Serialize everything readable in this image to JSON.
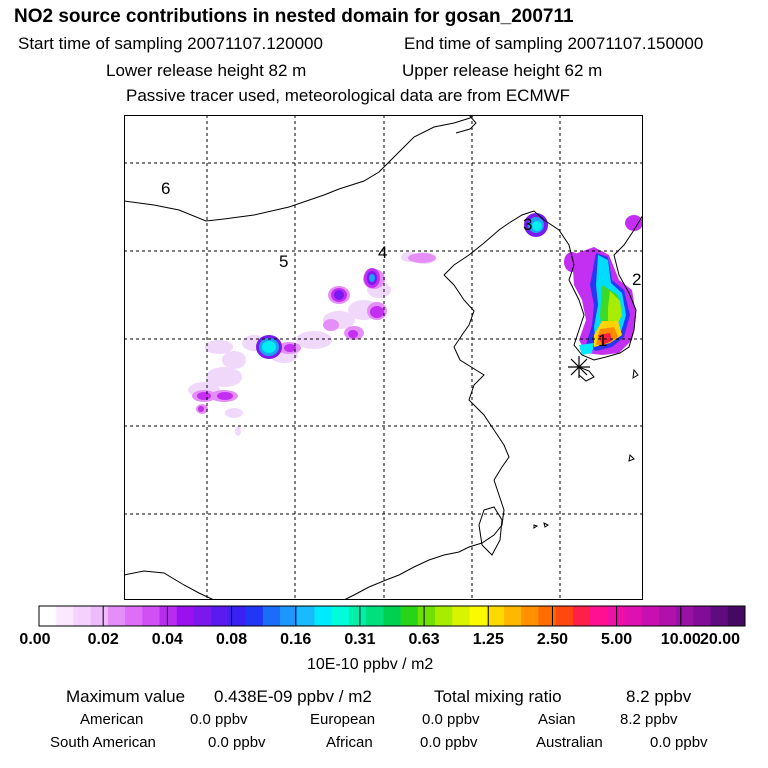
{
  "header": {
    "title": "NO2 source contributions in nested domain for gosan_200711",
    "start_time": "Start time of sampling 20071107.120000",
    "end_time": "End time of sampling 20071107.150000",
    "lower_release": "Lower release height   82 m",
    "upper_release": "Upper release height   62 m",
    "note": "Passive tracer used, meteorological data are from ECMWF"
  },
  "map": {
    "region_labels": [
      "6",
      "5",
      "4",
      "3",
      "2",
      "1"
    ],
    "receptor_marker": "asterisk"
  },
  "colorbar": {
    "tick_labels": [
      "0.00",
      "0.02",
      "0.04",
      "0.08",
      "0.16",
      "0.31",
      "0.63",
      "1.25",
      "2.50",
      "5.00",
      "10.00",
      "20.00"
    ],
    "units": "10E-10 ppbv / m2",
    "colors": [
      "#ffffff",
      "#fbe8ff",
      "#f5d2fd",
      "#eebbfb",
      "#e68ef8",
      "#de6ef6",
      "#d050f4",
      "#b82cf0",
      "#9a10ee",
      "#7a18ee",
      "#5a1af0",
      "#3a20f2",
      "#2038f6",
      "#1c6cfa",
      "#1c98fc",
      "#18bcfe",
      "#00eaff",
      "#00fcd8",
      "#00f0a8",
      "#00e07c",
      "#00d050",
      "#28d418",
      "#70e000",
      "#a8ec00",
      "#d8f400",
      "#fcfa00",
      "#ffda00",
      "#ffb800",
      "#ff9000",
      "#ff6c00",
      "#ff4810",
      "#ff2048",
      "#ff1090",
      "#f010a8",
      "#de10b0",
      "#c810b0",
      "#b010ac",
      "#9810a4",
      "#800c98",
      "#600c7c",
      "#440a62"
    ]
  },
  "summary": {
    "max_label": "Maximum value",
    "max_value": "0.438E-09 ppbv / m2",
    "total_label": "Total mixing ratio",
    "total_value": "8.2 ppbv",
    "regions": [
      {
        "name": "American",
        "value": "0.0 ppbv"
      },
      {
        "name": "European",
        "value": "0.0 ppbv"
      },
      {
        "name": "Asian",
        "value": "8.2 ppbv"
      },
      {
        "name": "South American",
        "value": "0.0 ppbv"
      },
      {
        "name": "African",
        "value": "0.0 ppbv"
      },
      {
        "name": "Australian",
        "value": "0.0 ppbv"
      }
    ]
  }
}
